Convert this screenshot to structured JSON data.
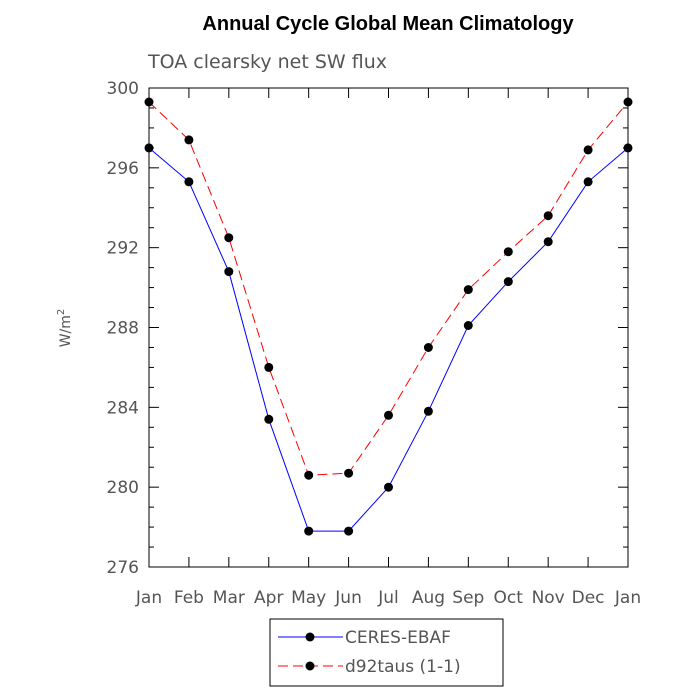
{
  "chart_data": {
    "type": "line",
    "title": "Annual Cycle Global Mean Climatology",
    "subtitle": "TOA clearsky net SW flux",
    "xlabel": "",
    "ylabel": "W/m",
    "ylabel_superscript": "2",
    "categories": [
      "Jan",
      "Feb",
      "Mar",
      "Apr",
      "May",
      "Jun",
      "Jul",
      "Aug",
      "Sep",
      "Oct",
      "Nov",
      "Dec",
      "Jan"
    ],
    "ylim": [
      276,
      300
    ],
    "yticks": [
      "276",
      "280",
      "284",
      "288",
      "292",
      "296",
      "300"
    ],
    "ytick_values": [
      276,
      280,
      284,
      288,
      292,
      296,
      300
    ],
    "grid": false,
    "legend_position": "bottom-center",
    "series": [
      {
        "name": "CERES-EBAF",
        "color": "#0000ff",
        "dash": "solid",
        "values": [
          297.0,
          295.3,
          290.8,
          283.4,
          277.8,
          277.8,
          280.0,
          283.8,
          288.1,
          290.3,
          292.3,
          295.3,
          297.0
        ]
      },
      {
        "name": "d92taus (1-1)",
        "color": "#ff0000",
        "dash": "dashed",
        "values": [
          299.3,
          297.4,
          292.5,
          286.0,
          280.6,
          280.7,
          283.6,
          287.0,
          289.9,
          291.8,
          293.6,
          296.9,
          299.3
        ]
      }
    ]
  }
}
